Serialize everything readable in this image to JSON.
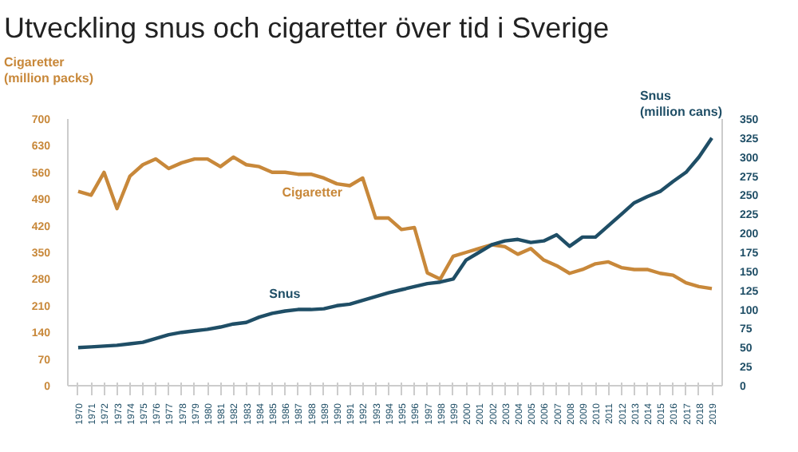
{
  "chart_data": {
    "type": "line",
    "title": "Utveckling snus och cigaretter över tid i Sverige",
    "categories": [
      "1970",
      "1971",
      "1972",
      "1973",
      "1974",
      "1975",
      "1976",
      "1977",
      "1978",
      "1979",
      "1980",
      "1981",
      "1982",
      "1983",
      "1984",
      "1985",
      "1986",
      "1987",
      "1988",
      "1989",
      "1990",
      "1991",
      "1992",
      "1993",
      "1994",
      "1995",
      "1996",
      "1997",
      "1998",
      "1999",
      "2000",
      "2001",
      "2002",
      "2003",
      "2004",
      "2005",
      "2006",
      "2007",
      "2008",
      "2009",
      "2010",
      "2011",
      "2012",
      "2013",
      "2014",
      "2015",
      "2016",
      "2017",
      "2018",
      "2019"
    ],
    "ylabel": "Cigaretter\n(million packs)",
    "y2label": "Snus\n(million cans)",
    "ylim": [
      0,
      700
    ],
    "yticks": [
      0,
      70,
      140,
      210,
      280,
      350,
      420,
      490,
      560,
      630,
      700
    ],
    "y2lim": [
      0,
      350
    ],
    "y2ticks": [
      0,
      25,
      50,
      75,
      100,
      125,
      150,
      175,
      200,
      225,
      250,
      275,
      300,
      325,
      350
    ],
    "grid": false,
    "series": [
      {
        "name": "Cigaretter",
        "color": "#c8883a",
        "values": [
          510,
          500,
          560,
          465,
          550,
          580,
          595,
          570,
          585,
          595,
          595,
          575,
          600,
          580,
          575,
          560,
          560,
          555,
          555,
          545,
          530,
          525,
          545,
          440,
          440,
          410,
          415,
          296,
          280,
          340,
          350,
          360,
          370,
          365,
          345,
          360,
          330,
          315,
          295,
          305,
          320,
          325,
          310,
          305,
          305,
          295,
          290,
          270,
          260,
          255
        ]
      },
      {
        "name": "Snus",
        "color": "#1f4e66",
        "axis": "y2",
        "values": [
          50,
          51,
          52,
          53,
          55,
          57,
          62,
          67,
          70,
          72,
          74,
          77,
          81,
          83,
          90,
          95,
          98,
          100,
          100,
          101,
          105,
          107,
          112,
          117,
          122,
          126,
          130,
          134,
          136,
          140,
          165,
          175,
          185,
          190,
          192,
          188,
          190,
          198,
          183,
          195,
          195,
          210,
          225,
          240,
          248,
          255,
          268,
          280,
          300,
          325
        ]
      }
    ]
  }
}
